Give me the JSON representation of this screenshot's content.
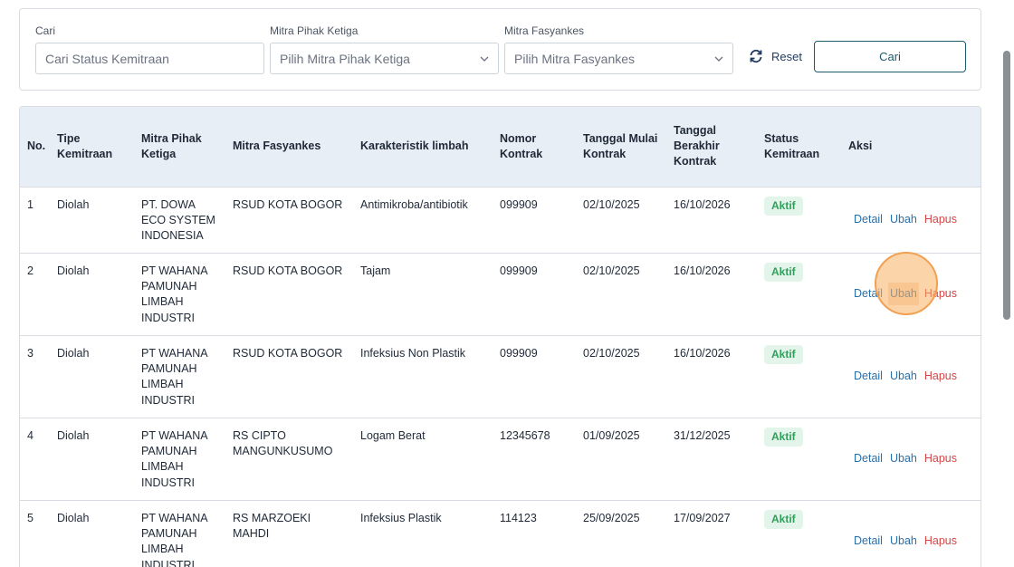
{
  "filters": {
    "search": {
      "label": "Cari",
      "placeholder": "Cari Status Kemitraan"
    },
    "third_party": {
      "label": "Mitra Pihak Ketiga",
      "value": "Pilih Mitra Pihak Ketiga"
    },
    "facility": {
      "label": "Mitra Fasyankes",
      "value": "Pilih Mitra Fasyankes"
    },
    "reset_label": "Reset",
    "search_button": "Cari"
  },
  "table": {
    "headers": [
      "No.",
      "Tipe Kemitraan",
      "Mitra Pihak Ketiga",
      "Mitra Fasyankes",
      "Karakteristik limbah",
      "Nomor Kontrak",
      "Tanggal Mulai Kontrak",
      "Tanggal Berakhir Kontrak",
      "Status Kemitraan",
      "Aksi"
    ],
    "rows": [
      {
        "no": "1",
        "tipe": "Diolah",
        "pihak": "PT. DOWA ECO SYSTEM INDONESIA",
        "fasyankes": "RSUD KOTA BOGOR",
        "limbah": "Antimikroba/antibiotik",
        "kontrak": "099909",
        "mulai": "02/10/2025",
        "berakhir": "16/10/2026",
        "status": "Aktif"
      },
      {
        "no": "2",
        "tipe": "Diolah",
        "pihak": "PT WAHANA PAMUNAH LIMBAH INDUSTRI",
        "fasyankes": "RSUD KOTA BOGOR",
        "limbah": "Tajam",
        "kontrak": "099909",
        "mulai": "02/10/2025",
        "berakhir": "16/10/2026",
        "status": "Aktif"
      },
      {
        "no": "3",
        "tipe": "Diolah",
        "pihak": "PT WAHANA PAMUNAH LIMBAH INDUSTRI",
        "fasyankes": "RSUD KOTA BOGOR",
        "limbah": "Infeksius Non Plastik",
        "kontrak": "099909",
        "mulai": "02/10/2025",
        "berakhir": "16/10/2026",
        "status": "Aktif"
      },
      {
        "no": "4",
        "tipe": "Diolah",
        "pihak": "PT WAHANA PAMUNAH LIMBAH INDUSTRI",
        "fasyankes": "RS CIPTO MANGUNKUSUMO",
        "limbah": "Logam Berat",
        "kontrak": "12345678",
        "mulai": "01/09/2025",
        "berakhir": "31/12/2025",
        "status": "Aktif"
      },
      {
        "no": "5",
        "tipe": "Diolah",
        "pihak": "PT WAHANA PAMUNAH LIMBAH INDUSTRI",
        "fasyankes": "RS MARZOEKI MAHDI",
        "limbah": "Infeksius Plastik",
        "kontrak": "114123",
        "mulai": "25/09/2025",
        "berakhir": "17/09/2027",
        "status": "Aktif"
      }
    ],
    "actions": {
      "detail": "Detail",
      "edit": "Ubah",
      "delete": "Hapus"
    }
  },
  "colors": {
    "accent": "#1d5a6e",
    "link": "#2a6fa8",
    "danger": "#d64545",
    "badge_bg": "#e3f5ea",
    "badge_text": "#2fa05a",
    "header_bg": "#e8eef5"
  }
}
